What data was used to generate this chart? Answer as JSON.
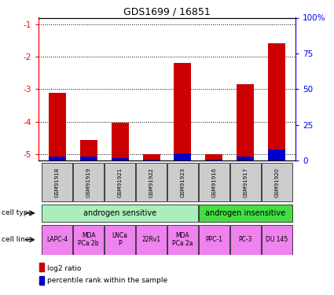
{
  "title": "GDS1699 / 16851",
  "samples": [
    "GSM91918",
    "GSM91919",
    "GSM91921",
    "GSM91922",
    "GSM91923",
    "GSM91916",
    "GSM91917",
    "GSM91920"
  ],
  "log2_ratio": [
    -3.12,
    -4.55,
    -4.02,
    -5.0,
    -2.18,
    -5.0,
    -2.85,
    -1.58
  ],
  "percentile_rank": [
    3.0,
    3.0,
    2.0,
    0.5,
    5.0,
    0.5,
    3.0,
    8.0
  ],
  "cell_type_sensitive_label": "androgen sensitive",
  "cell_type_insensitive_label": "androgen insensitive",
  "cell_type_sensitive_color": "#AAEEBB",
  "cell_type_insensitive_color": "#44DD44",
  "cell_line_labels": [
    "LAPC-4",
    "MDA\nPCa 2b",
    "LNCa\nP",
    "22Rv1",
    "MDA\nPCa 2a",
    "PPC-1",
    "PC-3",
    "DU 145"
  ],
  "cell_line_color": "#EE82EE",
  "bar_color_red": "#CC0000",
  "bar_color_blue": "#0000CC",
  "ylim_left": [
    -5.2,
    -0.8
  ],
  "yticks_left": [
    -5,
    -4,
    -3,
    -2,
    -1
  ],
  "ylim_right": [
    0,
    100
  ],
  "yticks_right": [
    0,
    25,
    50,
    75,
    100
  ],
  "yticklabels_right": [
    "0",
    "25",
    "50",
    "75",
    "100%"
  ],
  "sample_box_color": "#CCCCCC",
  "legend_red_label": "log2 ratio",
  "legend_blue_label": "percentile rank within the sample",
  "cell_type_label": "cell type",
  "cell_line_label": "cell line"
}
